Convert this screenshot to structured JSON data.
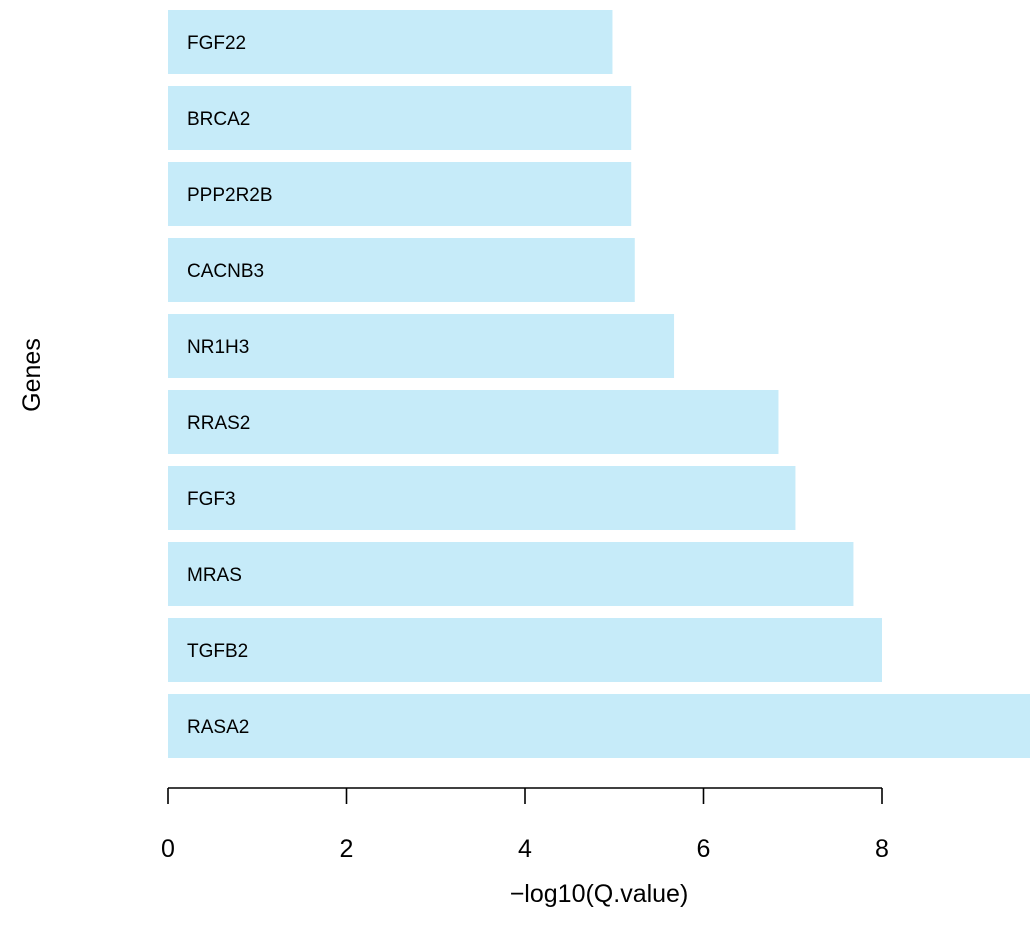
{
  "chart_data": {
    "type": "bar",
    "orientation": "horizontal",
    "categories": [
      "RASA2",
      "TGFB2",
      "MRAS",
      "FGF3",
      "RRAS2",
      "NR1H3",
      "CACNB3",
      "PPP2R2B",
      "BRCA2",
      "FGF22"
    ],
    "values": [
      9.8,
      8.0,
      7.68,
      7.03,
      6.84,
      5.67,
      5.23,
      5.19,
      5.19,
      4.98
    ],
    "xlabel": "−log10(Q.value)",
    "ylabel": "Genes",
    "xticks": [
      "0",
      "2",
      "4",
      "6",
      "8"
    ],
    "xtick_values": [
      0,
      2,
      4,
      6,
      8
    ],
    "xlim": [
      0,
      9.8
    ],
    "grid": false,
    "bar_color": "#c6ebf9"
  }
}
